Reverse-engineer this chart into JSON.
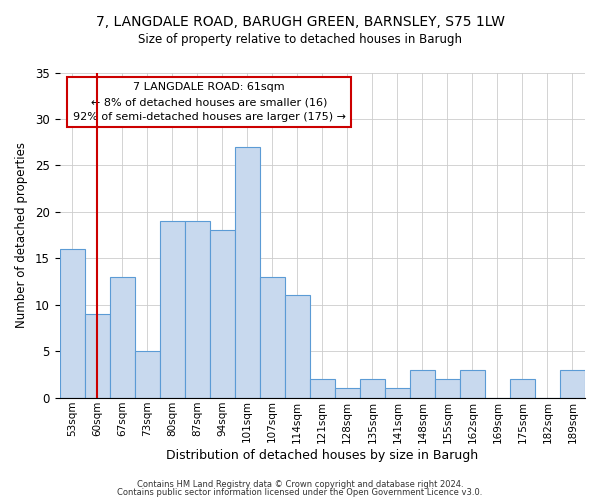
{
  "title": "7, LANGDALE ROAD, BARUGH GREEN, BARNSLEY, S75 1LW",
  "subtitle": "Size of property relative to detached houses in Barugh",
  "xlabel": "Distribution of detached houses by size in Barugh",
  "ylabel": "Number of detached properties",
  "bin_labels": [
    "53sqm",
    "60sqm",
    "67sqm",
    "73sqm",
    "80sqm",
    "87sqm",
    "94sqm",
    "101sqm",
    "107sqm",
    "114sqm",
    "121sqm",
    "128sqm",
    "135sqm",
    "141sqm",
    "148sqm",
    "155sqm",
    "162sqm",
    "169sqm",
    "175sqm",
    "182sqm",
    "189sqm"
  ],
  "bar_heights": [
    16,
    9,
    13,
    5,
    19,
    19,
    18,
    27,
    13,
    11,
    2,
    1,
    2,
    1,
    3,
    2,
    3,
    0,
    2,
    0,
    3
  ],
  "bar_color": "#c8d9ee",
  "bar_edge_color": "#5b9bd5",
  "vline_x": 1,
  "vline_color": "#cc0000",
  "annotation_line1": "7 LANGDALE ROAD: 61sqm",
  "annotation_line2": "← 8% of detached houses are smaller (16)",
  "annotation_line3": "92% of semi-detached houses are larger (175) →",
  "annotation_box_edge_color": "#cc0000",
  "ylim": [
    0,
    35
  ],
  "yticks": [
    0,
    5,
    10,
    15,
    20,
    25,
    30,
    35
  ],
  "footer1": "Contains HM Land Registry data © Crown copyright and database right 2024.",
  "footer2": "Contains public sector information licensed under the Open Government Licence v3.0."
}
